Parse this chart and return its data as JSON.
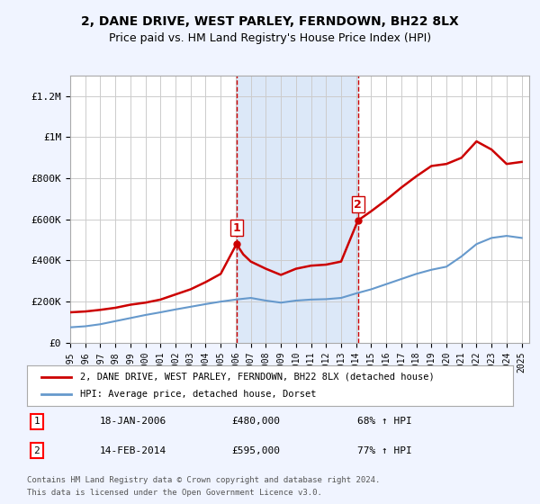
{
  "title": "2, DANE DRIVE, WEST PARLEY, FERNDOWN, BH22 8LX",
  "subtitle": "Price paid vs. HM Land Registry's House Price Index (HPI)",
  "legend_line1": "2, DANE DRIVE, WEST PARLEY, FERNDOWN, BH22 8LX (detached house)",
  "legend_line2": "HPI: Average price, detached house, Dorset",
  "footer1": "Contains HM Land Registry data © Crown copyright and database right 2024.",
  "footer2": "This data is licensed under the Open Government Licence v3.0.",
  "sale1_label": "1",
  "sale1_date": "18-JAN-2006",
  "sale1_price": "£480,000",
  "sale1_hpi": "68% ↑ HPI",
  "sale1_year": 2006.05,
  "sale1_value": 480000,
  "sale2_label": "2",
  "sale2_date": "14-FEB-2014",
  "sale2_price": "£595,000",
  "sale2_hpi": "77% ↑ HPI",
  "sale2_year": 2014.12,
  "sale2_value": 595000,
  "hpi_color": "#6699cc",
  "price_color": "#cc0000",
  "background_color": "#f0f4ff",
  "plot_bg": "#ffffff",
  "shade_color": "#dce8f8",
  "ylim": [
    0,
    1300000
  ],
  "yticks": [
    0,
    200000,
    400000,
    600000,
    800000,
    1000000,
    1200000
  ],
  "ytick_labels": [
    "£0",
    "£200K",
    "£400K",
    "£600K",
    "£800K",
    "£1M",
    "£1.2M"
  ],
  "years_hpi": [
    1995,
    1996,
    1997,
    1998,
    1999,
    2000,
    2001,
    2002,
    2003,
    2004,
    2005,
    2006,
    2007,
    2008,
    2009,
    2010,
    2011,
    2012,
    2013,
    2014,
    2015,
    2016,
    2017,
    2018,
    2019,
    2020,
    2021,
    2022,
    2023,
    2024,
    2025
  ],
  "hpi_values": [
    75000,
    80000,
    90000,
    105000,
    120000,
    135000,
    148000,
    162000,
    175000,
    188000,
    200000,
    210000,
    218000,
    205000,
    195000,
    205000,
    210000,
    212000,
    218000,
    240000,
    260000,
    285000,
    310000,
    335000,
    355000,
    370000,
    420000,
    480000,
    510000,
    520000,
    510000
  ],
  "price_years": [
    1995,
    1996,
    1997,
    1998,
    1999,
    2000,
    2001,
    2002,
    2003,
    2004,
    2005,
    2006.05,
    2006.5,
    2007,
    2008,
    2009,
    2010,
    2011,
    2012,
    2013,
    2014.12,
    2015,
    2016,
    2017,
    2018,
    2019,
    2020,
    2021,
    2022,
    2023,
    2024,
    2025
  ],
  "price_values": [
    148000,
    152000,
    160000,
    170000,
    185000,
    195000,
    210000,
    235000,
    260000,
    295000,
    335000,
    480000,
    430000,
    395000,
    360000,
    330000,
    360000,
    375000,
    380000,
    395000,
    595000,
    640000,
    695000,
    755000,
    810000,
    860000,
    870000,
    900000,
    980000,
    940000,
    870000,
    880000
  ],
  "xtick_years": [
    1995,
    1996,
    1997,
    1998,
    1999,
    2000,
    2001,
    2002,
    2003,
    2004,
    2005,
    2006,
    2007,
    2008,
    2009,
    2010,
    2011,
    2012,
    2013,
    2014,
    2015,
    2016,
    2017,
    2018,
    2019,
    2020,
    2021,
    2022,
    2023,
    2024,
    2025
  ]
}
